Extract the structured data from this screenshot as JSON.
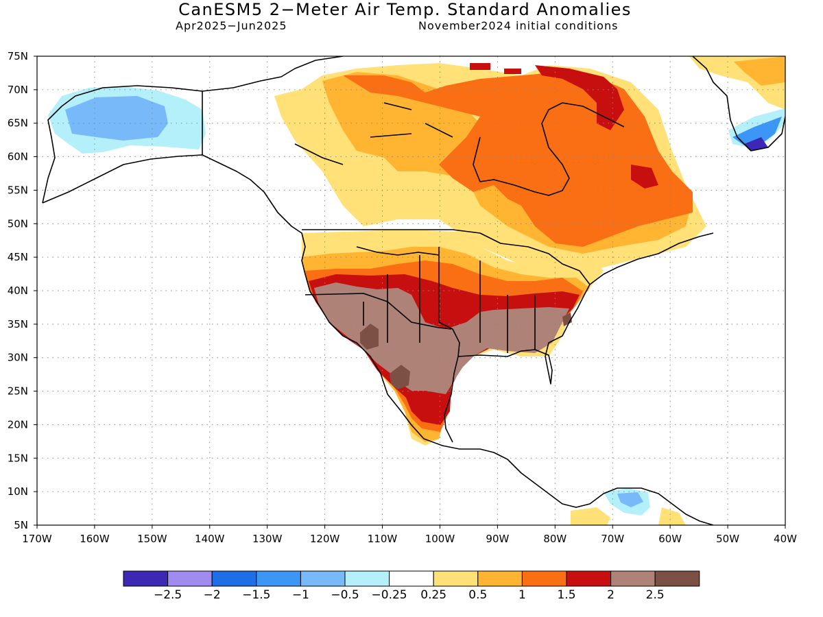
{
  "header": {
    "title": "CanESM5 2−Meter Air Temp. Standard Anomalies",
    "period": "Apr2025−Jun2025",
    "init": "November2024 initial conditions"
  },
  "map": {
    "region": "North America",
    "projection": "equirectangular",
    "lon_range": [
      -170,
      -40
    ],
    "lat_range": [
      5,
      75
    ],
    "grid": "dotted",
    "lat_labels": [
      "75N",
      "70N",
      "65N",
      "60N",
      "55N",
      "50N",
      "45N",
      "40N",
      "35N",
      "30N",
      "25N",
      "20N",
      "15N",
      "10N",
      "5N"
    ],
    "lon_labels": [
      "170W",
      "160W",
      "150W",
      "140W",
      "130W",
      "120W",
      "110W",
      "100W",
      "90W",
      "80W",
      "70W",
      "60W",
      "50W",
      "40W"
    ]
  },
  "colorbar": {
    "colors": [
      "#3c28b4",
      "#a08cf0",
      "#1e6ee6",
      "#3c96f5",
      "#78b9fa",
      "#b4f0fa",
      "#ffffff",
      "#ffe178",
      "#ffb432",
      "#fa6e14",
      "#c80f0f",
      "#af8278",
      "#7d5046"
    ],
    "labels": [
      "−2.5",
      "−2",
      "−1.5",
      "−1",
      "−0.5",
      "−0.25",
      "0.25",
      "0.5",
      "1",
      "1.5",
      "2",
      "2.5"
    ]
  }
}
